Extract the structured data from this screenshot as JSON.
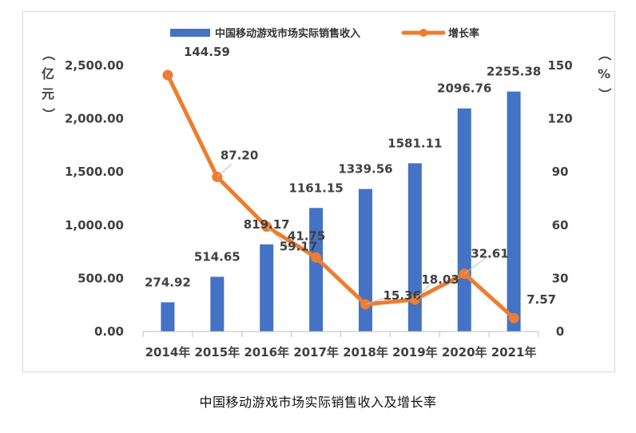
{
  "caption": "中国移动游戏市场实际销售收入及增长率",
  "chart_data": {
    "type": "bar",
    "categories": [
      "2014年",
      "2015年",
      "2016年",
      "2017年",
      "2018年",
      "2019年",
      "2020年",
      "2021年"
    ],
    "series": [
      {
        "name": "中国移动游戏市场实际销售收入",
        "type": "bar",
        "axis": "left",
        "color": "#4472C4",
        "values": [
          274.92,
          514.65,
          819.17,
          1161.15,
          1339.56,
          1581.11,
          2096.76,
          2255.38
        ],
        "labels": [
          "274.92",
          "514.65",
          "819.17",
          "1161.15",
          "1339.56",
          "1581.11",
          "2096.76",
          "2255.38"
        ]
      },
      {
        "name": "增长率",
        "type": "line",
        "axis": "right",
        "color": "#ED7D31",
        "values": [
          144.59,
          87.2,
          59.17,
          41.75,
          15.36,
          18.03,
          32.61,
          7.57
        ],
        "labels": [
          "144.59",
          "87.20",
          "59.17",
          "41.75",
          "15.36",
          "18.03",
          "32.61",
          "7.57"
        ]
      }
    ],
    "y_left": {
      "label": "（亿元）",
      "ylim": [
        0,
        2500
      ],
      "ticks": [
        "0.00",
        "500.00",
        "1,000.00",
        "1,500.00",
        "2,000.00",
        "2,500.00"
      ]
    },
    "y_right": {
      "label": "（%）",
      "ylim": [
        0,
        150
      ],
      "ticks": [
        "0",
        "30",
        "60",
        "90",
        "120",
        "150"
      ]
    },
    "grid": false,
    "legend": "top"
  }
}
